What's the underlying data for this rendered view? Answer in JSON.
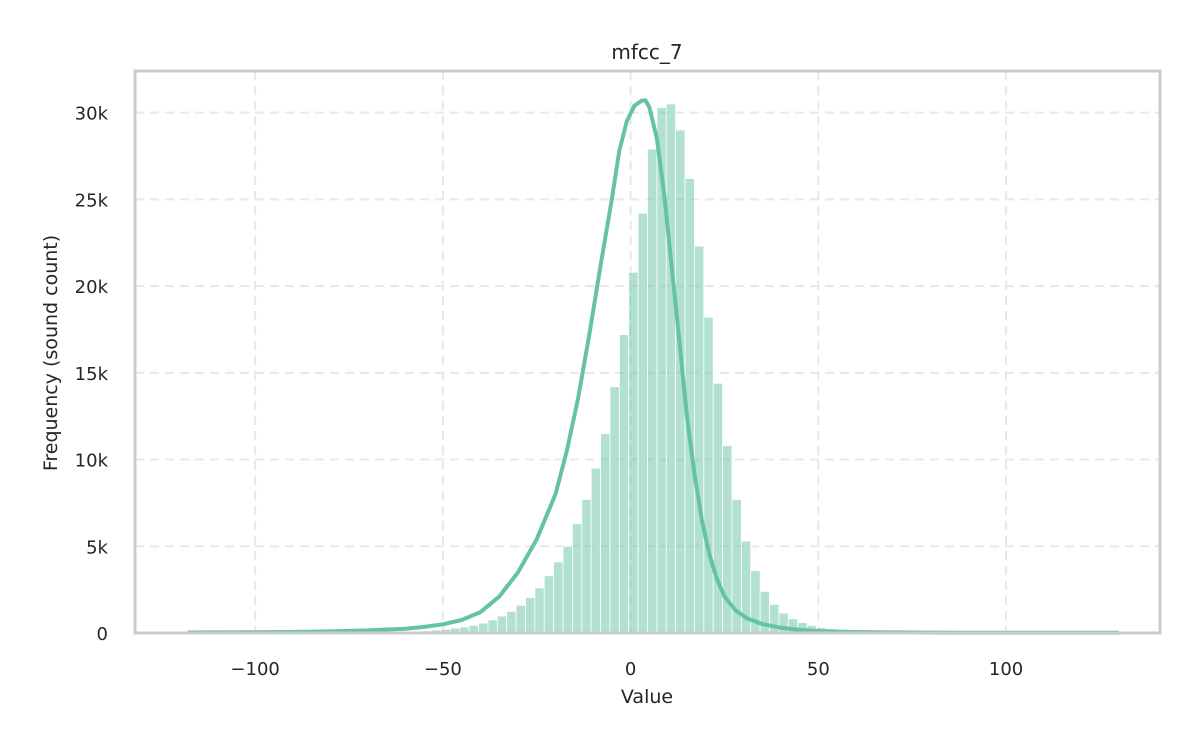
{
  "chart_data": {
    "type": "bar",
    "subtype": "histogram-with-kde",
    "title": "mfcc_7",
    "xlabel": "Value",
    "ylabel": "Frequency (sound count)",
    "xlim": [
      -132,
      141
    ],
    "ylim": [
      0,
      32400
    ],
    "xticks": [
      -100,
      -50,
      0,
      50,
      100
    ],
    "xtick_labels": [
      "−100",
      "−50",
      "0",
      "50",
      "100"
    ],
    "yticks": [
      0,
      5000,
      10000,
      15000,
      20000,
      25000,
      30000
    ],
    "ytick_labels": [
      "0",
      "5k",
      "10k",
      "15k",
      "20k",
      "25k",
      "30k"
    ],
    "grid": true,
    "legend": "none",
    "color": "#66c2a5",
    "bins": {
      "start": -118,
      "width": 2.5,
      "counts": [
        10,
        10,
        10,
        10,
        10,
        10,
        10,
        10,
        10,
        10,
        10,
        10,
        10,
        10,
        20,
        20,
        20,
        30,
        30,
        40,
        50,
        60,
        70,
        80,
        100,
        130,
        170,
        220,
        280,
        350,
        450,
        570,
        750,
        980,
        1250,
        1600,
        2050,
        2600,
        3300,
        4100,
        5000,
        6300,
        7700,
        9500,
        11500,
        14200,
        17200,
        20800,
        24200,
        27900,
        30300,
        30500,
        29000,
        26200,
        22300,
        18200,
        14400,
        10800,
        7700,
        5300,
        3600,
        2400,
        1650,
        1150,
        820,
        600,
        440,
        320,
        240,
        180,
        140,
        110,
        85,
        65,
        50,
        40,
        30,
        25,
        20,
        20,
        15,
        15,
        10,
        10,
        10,
        10,
        10,
        10,
        10,
        10,
        10,
        10,
        10,
        10,
        10,
        10,
        10,
        10,
        10,
        10
      ]
    },
    "kde": {
      "x": [
        -118,
        -110,
        -100,
        -90,
        -80,
        -70,
        -60,
        -55,
        -50,
        -45,
        -40,
        -35,
        -30,
        -25,
        -20,
        -17,
        -14,
        -11,
        -8,
        -5,
        -3,
        -1,
        1,
        3,
        4,
        5,
        7,
        9,
        11,
        13,
        15,
        17,
        19,
        21,
        23,
        25,
        28,
        31,
        35,
        40,
        45,
        50,
        60,
        70,
        80,
        90,
        100,
        110,
        120,
        130
      ],
      "y": [
        30,
        35,
        45,
        60,
        90,
        150,
        250,
        350,
        500,
        750,
        1200,
        2100,
        3500,
        5400,
        8000,
        10500,
        13500,
        17200,
        21200,
        25000,
        27800,
        29500,
        30400,
        30700,
        30700,
        30300,
        28500,
        25200,
        21000,
        16800,
        12500,
        9200,
        6500,
        4500,
        3100,
        2100,
        1300,
        850,
        520,
        300,
        180,
        110,
        60,
        35,
        25,
        18,
        14,
        12,
        10,
        10
      ]
    }
  }
}
